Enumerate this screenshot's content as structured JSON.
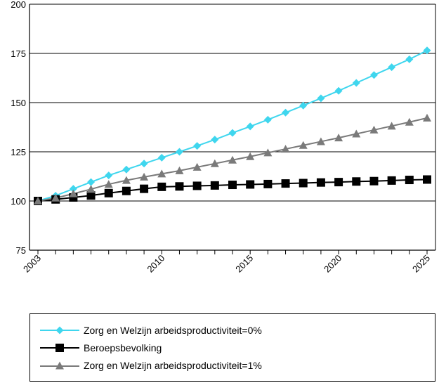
{
  "chart_data": {
    "type": "line",
    "x": [
      2003,
      2004,
      2005,
      2006,
      2007,
      2008,
      2009,
      2010,
      2011,
      2012,
      2013,
      2014,
      2015,
      2016,
      2017,
      2018,
      2019,
      2020,
      2021,
      2022,
      2023,
      2024,
      2025
    ],
    "xticks": [
      "2003",
      "2010",
      "2015",
      "2020",
      "2025"
    ],
    "yticks": [
      "75",
      "100",
      "125",
      "150",
      "175",
      "200"
    ],
    "ylim": [
      75,
      200
    ],
    "xlim": [
      2003,
      2025
    ],
    "grid": "horizontal",
    "legend_position": "bottom",
    "series": [
      {
        "name": "Zorg en Welzijn arbeidsproductiviteit=0%",
        "color": "#3fd6ee",
        "marker": "diamond",
        "values": [
          100,
          102.7,
          106.2,
          109.6,
          113.0,
          116.0,
          119.0,
          122.0,
          125.0,
          128.0,
          131.2,
          134.6,
          137.9,
          141.3,
          144.9,
          148.5,
          152.2,
          156.0,
          160.0,
          164.0,
          168.0,
          172.0,
          176.5
        ]
      },
      {
        "name": "Beroepsbevolking",
        "color": "#000000",
        "marker": "square",
        "values": [
          100,
          100.8,
          101.8,
          102.8,
          104.0,
          105.1,
          106.2,
          107.2,
          107.4,
          107.7,
          107.9,
          108.2,
          108.4,
          108.6,
          108.9,
          109.1,
          109.4,
          109.6,
          109.9,
          110.1,
          110.4,
          110.7,
          110.9
        ]
      },
      {
        "name": "Zorg en Welzijn arbeidsproductiviteit=1%",
        "color": "#7a7a7a",
        "marker": "triangle",
        "values": [
          100,
          101.5,
          103.7,
          106.0,
          108.5,
          110.5,
          112.2,
          113.8,
          115.4,
          117.2,
          119.0,
          120.8,
          122.6,
          124.5,
          126.4,
          128.3,
          130.2,
          132.1,
          134.1,
          136.1,
          138.1,
          140.1,
          142.2
        ]
      }
    ]
  }
}
